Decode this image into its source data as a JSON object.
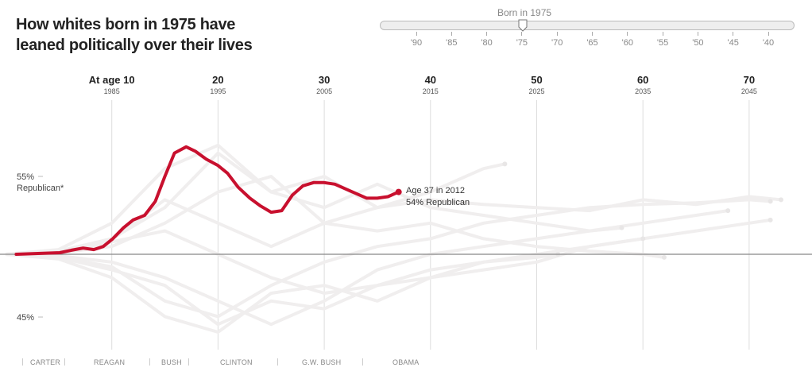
{
  "title": "How whites born in 1975 have leaned politically over their lives",
  "slider": {
    "label": "Born in 1975",
    "ticks": [
      "'90",
      "'85",
      "'80",
      "'75",
      "'70",
      "'65",
      "'60",
      "'55",
      "'50",
      "'45",
      "'40"
    ],
    "selected": "'75"
  },
  "colors": {
    "highlight": "#c8102e",
    "ghost": "#f0eeee",
    "axis": "#888888"
  },
  "presidents": [
    "CARTER",
    "REAGAN",
    "BUSH",
    "CLINTON",
    "G.W. BUSH",
    "OBAMA"
  ],
  "chart_data": {
    "type": "line",
    "title": "How whites born in 1975 have leaned politically over their lives",
    "xlabel": "Age",
    "ylabel": "% Republican",
    "xlim": [
      0,
      75
    ],
    "ylim": [
      44,
      57
    ],
    "age_ticks": [
      {
        "age": 10,
        "label": "At age 10",
        "year": "1985"
      },
      {
        "age": 20,
        "label": "20",
        "year": "1995"
      },
      {
        "age": 30,
        "label": "30",
        "year": "2005"
      },
      {
        "age": 40,
        "label": "40",
        "year": "2015"
      },
      {
        "age": 50,
        "label": "50",
        "year": "2025"
      },
      {
        "age": 60,
        "label": "60",
        "year": "2035"
      },
      {
        "age": 70,
        "label": "70",
        "year": "2045"
      }
    ],
    "y_ticks": [
      {
        "value": 55,
        "label": "55%",
        "sublabel": "Republican*"
      },
      {
        "value": 45,
        "label": "45%"
      }
    ],
    "baseline": 50,
    "highlight": {
      "name": "Born in 1975",
      "annotation": [
        "Age 37 in 2012",
        "54% Republican"
      ],
      "x": [
        1,
        5.1,
        6.2,
        7.3,
        8.3,
        9.2,
        10.1,
        11.1,
        12,
        13.1,
        14.1,
        15,
        15.9,
        17,
        17.9,
        18.9,
        20,
        20.9,
        21.9,
        23,
        24,
        25,
        26,
        27,
        28,
        29,
        30,
        31,
        32,
        33,
        34,
        35,
        36,
        37
      ],
      "y": [
        50,
        50.1,
        50.26,
        50.4,
        50.3,
        50.5,
        51,
        51.7,
        52.2,
        52.5,
        53.4,
        55,
        56.5,
        56.9,
        56.6,
        56.1,
        55.7,
        55.2,
        54.3,
        53.6,
        53.1,
        52.7,
        52.8,
        53.8,
        54.4,
        54.6,
        54.6,
        54.5,
        54.2,
        53.9,
        53.6,
        53.6,
        53.7,
        54
      ]
    },
    "ghost_series": [
      {
        "x": [
          0,
          5,
          10,
          15,
          20,
          25,
          30,
          35,
          40,
          45,
          50,
          55,
          60,
          65,
          70,
          73
        ],
        "y": [
          50,
          50.2,
          51,
          53,
          56.5,
          54,
          55,
          53,
          53.5,
          53.2,
          53,
          52.8,
          53.5,
          53.2,
          53.7,
          53.5
        ]
      },
      {
        "x": [
          0,
          5,
          10,
          15,
          20,
          25,
          30,
          35,
          40,
          45,
          50,
          55,
          60,
          65,
          70,
          72
        ],
        "y": [
          50,
          49.8,
          49,
          48,
          45.5,
          47,
          46.5,
          48,
          48.5,
          49,
          49.5,
          50.5,
          51,
          51.5,
          52,
          52.2
        ]
      },
      {
        "x": [
          0,
          5,
          10,
          15,
          20,
          25,
          30,
          35,
          40,
          45,
          50,
          55,
          60,
          65,
          68
        ],
        "y": [
          50,
          50.3,
          52,
          55.5,
          57,
          54,
          53,
          54.5,
          53,
          52.5,
          52,
          51.5,
          52,
          52.5,
          52.8
        ]
      },
      {
        "x": [
          0,
          5,
          10,
          15,
          20,
          25,
          30,
          35,
          40,
          45,
          50,
          55,
          60
        ],
        "y": [
          50,
          49.7,
          48.5,
          46,
          45,
          47.5,
          48,
          47,
          48.5,
          49.5,
          50,
          50.5,
          51
        ]
      },
      {
        "x": [
          0,
          5,
          10,
          15,
          20,
          25,
          30,
          35,
          40,
          45,
          50,
          55,
          60,
          62
        ],
        "y": [
          50,
          50.1,
          50.5,
          52,
          54,
          55,
          52,
          51.5,
          52,
          51,
          50.5,
          50.2,
          50,
          49.8
        ]
      },
      {
        "x": [
          0,
          5,
          10,
          15,
          20,
          25,
          30,
          35,
          40,
          45,
          50,
          55,
          58
        ],
        "y": [
          50,
          49.9,
          49.5,
          48.5,
          47,
          45.5,
          47,
          49,
          50,
          50.5,
          51,
          51.5,
          51.7
        ]
      },
      {
        "x": [
          0,
          5,
          10,
          15,
          20,
          25,
          30,
          35,
          40,
          45,
          47
        ],
        "y": [
          50,
          50.2,
          51,
          53.5,
          52,
          50.5,
          52,
          53,
          54,
          55.5,
          55.8
        ]
      },
      {
        "x": [
          0,
          5,
          10,
          15,
          20,
          25,
          30,
          35,
          40,
          45,
          50,
          55,
          60,
          65,
          70,
          72
        ],
        "y": [
          50,
          49.8,
          49.2,
          47,
          46,
          48,
          49.5,
          50.5,
          51,
          52,
          52.5,
          53,
          53.2,
          53.3,
          53.5,
          53.4
        ]
      },
      {
        "x": [
          0,
          5,
          10,
          15,
          20,
          25,
          30,
          35,
          40,
          45,
          50,
          52
        ],
        "y": [
          50,
          50.1,
          50.8,
          51.5,
          50,
          48.5,
          47.5,
          48,
          49,
          49.5,
          49.8,
          50
        ]
      }
    ]
  }
}
